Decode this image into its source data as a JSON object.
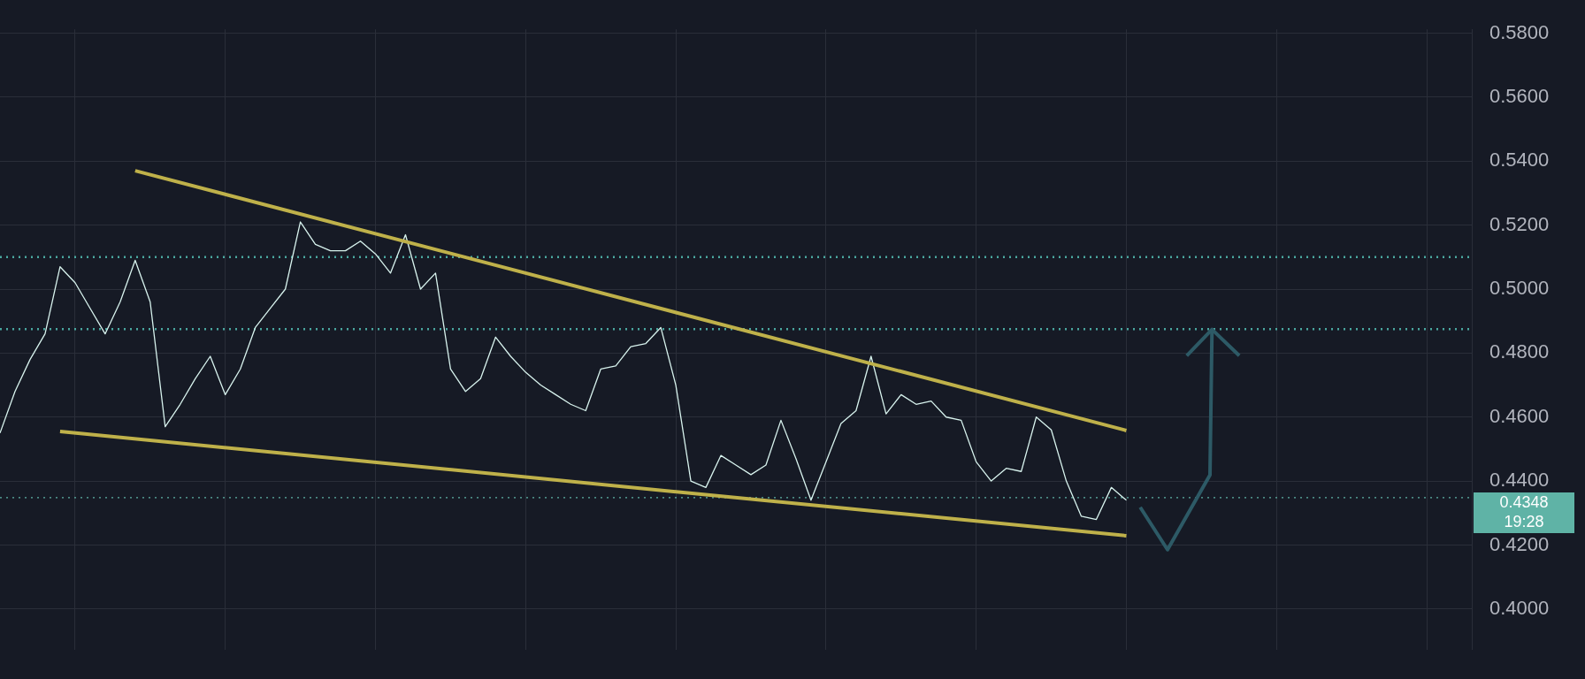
{
  "chart_data": {
    "type": "line",
    "ylim": [
      0.3873,
      0.5812
    ],
    "categories": [
      null,
      null,
      null,
      null,
      null,
      null,
      null,
      null,
      null,
      null,
      null,
      null,
      null,
      null,
      null,
      null,
      null,
      null,
      null,
      null,
      null,
      null,
      null,
      null,
      null,
      null,
      null,
      null,
      null,
      null,
      null,
      null,
      null,
      null,
      null,
      null,
      null,
      null,
      null,
      null,
      null,
      null,
      null,
      null,
      null,
      null,
      null,
      null,
      null,
      null,
      null,
      null,
      null,
      null,
      null,
      null,
      null,
      null,
      null,
      null,
      null,
      null,
      null,
      null,
      null,
      null,
      null,
      null,
      null,
      null,
      null,
      null,
      null,
      null,
      null,
      null
    ],
    "yticks": [
      {
        "value": 0.4,
        "label": "0.4000"
      },
      {
        "value": 0.42,
        "label": "0.4200"
      },
      {
        "value": 0.44,
        "label": "0.4400"
      },
      {
        "value": 0.46,
        "label": "0.4600"
      },
      {
        "value": 0.48,
        "label": "0.4800"
      },
      {
        "value": 0.5,
        "label": "0.5000"
      },
      {
        "value": 0.52,
        "label": "0.5200"
      },
      {
        "value": 0.54,
        "label": "0.5400"
      },
      {
        "value": 0.56,
        "label": "0.5600"
      },
      {
        "value": 0.58,
        "label": "0.5800"
      }
    ],
    "tick_labels": "y",
    "grid": true,
    "legend": false,
    "marker": "none",
    "series": [
      {
        "color": "#d8f3ee",
        "values": [
          0.455,
          0.468,
          0.478,
          0.486,
          0.507,
          0.502,
          0.494,
          0.486,
          0.496,
          0.509,
          0.496,
          0.457,
          0.464,
          0.472,
          0.479,
          0.467,
          0.475,
          0.488,
          0.494,
          0.5,
          0.521,
          0.514,
          0.512,
          0.512,
          0.515,
          0.511,
          0.505,
          0.517,
          0.5,
          0.505,
          0.475,
          0.468,
          0.472,
          0.485,
          0.479,
          0.474,
          0.47,
          0.467,
          0.464,
          0.462,
          0.475,
          0.476,
          0.482,
          0.483,
          0.488,
          0.47,
          0.44,
          0.438,
          0.448,
          0.445,
          0.442,
          0.445,
          0.459,
          0.447,
          0.434,
          0.446,
          0.458,
          0.462,
          0.479,
          0.461,
          0.467,
          0.464,
          0.465,
          0.46,
          0.459,
          0.446,
          0.44,
          0.444,
          0.443,
          0.46,
          0.456,
          0.44,
          0.429,
          0.428,
          0.438,
          0.434
        ]
      },
      {
        "type": "line",
        "color": "#bfb14a",
        "values": [
          null,
          null,
          null,
          null,
          null,
          null,
          null,
          null,
          null,
          0.537,
          null,
          null,
          null,
          null,
          null,
          null,
          null,
          null,
          null,
          null,
          null,
          null,
          null,
          null,
          null,
          null,
          null,
          null,
          null,
          null,
          null,
          null,
          null,
          null,
          null,
          null,
          null,
          null,
          null,
          null,
          null,
          null,
          null,
          null,
          null,
          null,
          null,
          null,
          null,
          null,
          null,
          null,
          null,
          null,
          null,
          null,
          null,
          null,
          null,
          null,
          null,
          null,
          null,
          null,
          null,
          null,
          null,
          null,
          null,
          null,
          null,
          null,
          null,
          null,
          null,
          0.4558
        ]
      },
      {
        "type": "line",
        "color": "#bfb14a",
        "values": [
          null,
          null,
          null,
          null,
          0.4555,
          null,
          null,
          null,
          null,
          null,
          null,
          null,
          null,
          null,
          null,
          null,
          null,
          null,
          null,
          null,
          null,
          null,
          null,
          null,
          null,
          null,
          null,
          null,
          null,
          null,
          null,
          null,
          null,
          null,
          null,
          null,
          null,
          null,
          null,
          null,
          null,
          null,
          null,
          null,
          null,
          null,
          null,
          null,
          null,
          null,
          null,
          null,
          null,
          null,
          null,
          null,
          null,
          null,
          null,
          null,
          null,
          null,
          null,
          null,
          null,
          null,
          null,
          null,
          null,
          null,
          null,
          null,
          null,
          null,
          null,
          0.4229
        ]
      }
    ],
    "ref_lines": [
      {
        "axis": "y",
        "value": 0.51,
        "color": "#4aa8a0",
        "line_style": "dotted"
      },
      {
        "axis": "y",
        "value": 0.4875,
        "color": "#4aa8a0",
        "line_style": "dotted"
      },
      {
        "axis": "y",
        "value": 0.4348,
        "label": "0.4348",
        "color": "#5fb3a6",
        "line_style": "dotted"
      }
    ],
    "annotations": [
      "19:28"
    ]
  }
}
